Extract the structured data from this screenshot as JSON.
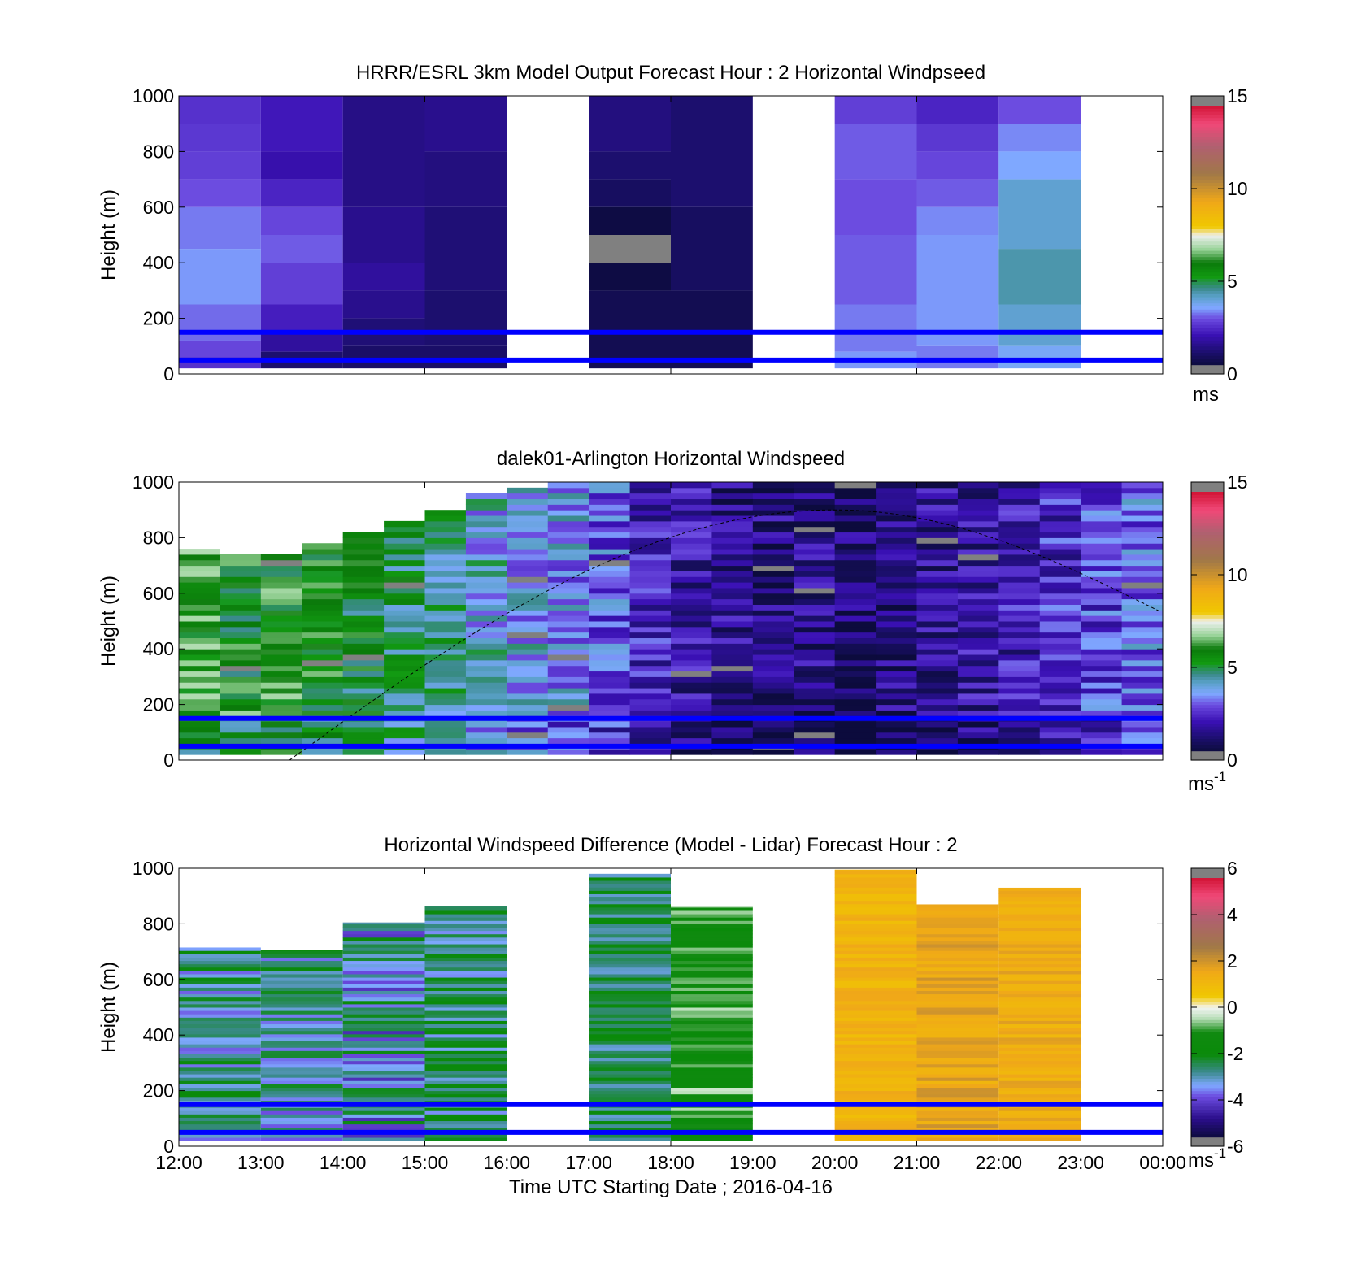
{
  "figure": {
    "xlabel": "Time UTC  Starting Date ; 2016-04-16",
    "x_ticks": [
      "12:00",
      "13:00",
      "14:00",
      "15:00",
      "16:00",
      "17:00",
      "18:00",
      "19:00",
      "20:00",
      "21:00",
      "22:00",
      "23:00",
      "00:00"
    ]
  },
  "chart_data": [
    {
      "type": "heatmap",
      "title": "HRRR/ESRL 3km Model Output   Forecast Hour : 2 Horizontal Windpseed",
      "ylabel": "Height (m)",
      "y_ticks": [
        "0",
        "200",
        "400",
        "600",
        "800",
        "1000"
      ],
      "ylim": [
        0,
        1000
      ],
      "xlim_hours": [
        12,
        24
      ],
      "colorbar": {
        "min": 0,
        "max": 15,
        "ticks": [
          "0",
          "5",
          "10",
          "15"
        ],
        "unit": "ms"
      },
      "reference_lines_m": [
        50,
        150
      ],
      "line_color": "#0000ff",
      "blocks": [
        {
          "start": 12,
          "end": 13,
          "top": 1000,
          "bottom": 20,
          "layers": [
            [
              2.6,
              1000
            ],
            [
              2.7,
              900
            ],
            [
              2.8,
              800
            ],
            [
              3.0,
              700
            ],
            [
              3.3,
              600
            ],
            [
              3.5,
              450
            ],
            [
              3.2,
              250
            ],
            [
              2.9,
              120
            ],
            [
              2.6,
              60
            ]
          ]
        },
        {
          "start": 13,
          "end": 14,
          "top": 1000,
          "bottom": 20,
          "layers": [
            [
              2.2,
              1000
            ],
            [
              2.0,
              800
            ],
            [
              2.4,
              700
            ],
            [
              2.9,
              600
            ],
            [
              3.1,
              500
            ],
            [
              2.8,
              400
            ],
            [
              2.3,
              250
            ],
            [
              1.8,
              150
            ],
            [
              1.2,
              80
            ]
          ]
        },
        {
          "start": 14,
          "end": 15,
          "top": 1000,
          "bottom": 20,
          "layers": [
            [
              1.5,
              1000
            ],
            [
              1.6,
              600
            ],
            [
              1.8,
              400
            ],
            [
              1.6,
              300
            ],
            [
              1.3,
              200
            ],
            [
              1.1,
              100
            ]
          ]
        },
        {
          "start": 15,
          "end": 16,
          "top": 1000,
          "bottom": 20,
          "layers": [
            [
              1.6,
              1000
            ],
            [
              1.4,
              800
            ],
            [
              1.3,
              600
            ],
            [
              1.2,
              300
            ],
            [
              1.1,
              100
            ]
          ]
        },
        {
          "start": 17,
          "end": 18,
          "top": 1000,
          "bottom": 20,
          "layers": [
            [
              1.4,
              1000
            ],
            [
              1.2,
              800
            ],
            [
              1.0,
              700
            ],
            [
              0.6,
              600
            ],
            [
              -1,
              500
            ],
            [
              0.6,
              400
            ],
            [
              0.8,
              300
            ]
          ]
        },
        {
          "start": 18,
          "end": 19,
          "top": 1000,
          "bottom": 20,
          "layers": [
            [
              1.2,
              1000
            ],
            [
              1.0,
              600
            ],
            [
              0.8,
              300
            ]
          ]
        },
        {
          "start": 20,
          "end": 21,
          "top": 1000,
          "bottom": 20,
          "layers": [
            [
              2.8,
              1000
            ],
            [
              3.1,
              900
            ],
            [
              3.0,
              700
            ],
            [
              3.1,
              500
            ],
            [
              3.3,
              250
            ],
            [
              3.5,
              80
            ]
          ]
        },
        {
          "start": 21,
          "end": 22,
          "top": 1000,
          "bottom": 20,
          "layers": [
            [
              2.4,
              1000
            ],
            [
              2.7,
              900
            ],
            [
              2.9,
              800
            ],
            [
              3.1,
              700
            ],
            [
              3.4,
              600
            ],
            [
              3.5,
              500
            ],
            [
              3.3,
              100
            ]
          ]
        },
        {
          "start": 22,
          "end": 23,
          "top": 1000,
          "bottom": 20,
          "layers": [
            [
              3.0,
              1000
            ],
            [
              3.4,
              900
            ],
            [
              3.6,
              800
            ],
            [
              4.1,
              700
            ],
            [
              4.4,
              450
            ],
            [
              4.1,
              250
            ],
            [
              3.7,
              100
            ]
          ]
        }
      ]
    },
    {
      "type": "heatmap",
      "title": "dalek01-Arlington  Horizontal Windspeed",
      "ylabel": "Height (m)",
      "y_ticks": [
        "0",
        "200",
        "400",
        "600",
        "800",
        "1000"
      ],
      "ylim": [
        0,
        1000
      ],
      "xlim_hours": [
        12,
        24
      ],
      "colorbar": {
        "min": 0,
        "max": 15,
        "ticks": [
          "0",
          "5",
          "10",
          "15"
        ],
        "unit": "ms",
        "unit_exp": "-1"
      },
      "reference_lines_m": [
        50,
        150
      ],
      "boundary_layer_curve": {
        "start_hour": 13.35,
        "peak_hour": 20.0,
        "peak_m": 900,
        "end_hour": 24,
        "end_m": 530
      },
      "columns": [
        {
          "start": 12.0,
          "top": 750,
          "mean": 6.0
        },
        {
          "start": 12.5,
          "top": 730,
          "mean": 5.7
        },
        {
          "start": 13.0,
          "top": 740,
          "mean": 5.8
        },
        {
          "start": 13.5,
          "top": 780,
          "mean": 5.5
        },
        {
          "start": 14.0,
          "top": 820,
          "mean": 5.3
        },
        {
          "start": 14.5,
          "top": 860,
          "mean": 5.0
        },
        {
          "start": 15.0,
          "top": 900,
          "mean": 4.6
        },
        {
          "start": 15.5,
          "top": 950,
          "mean": 4.0
        },
        {
          "start": 16.0,
          "top": 980,
          "mean": 3.7
        },
        {
          "start": 16.5,
          "top": 990,
          "mean": 3.6
        },
        {
          "start": 17.0,
          "top": 1000,
          "mean": 3.1
        },
        {
          "start": 17.5,
          "top": 1000,
          "mean": 2.3
        },
        {
          "start": 18.0,
          "top": 1000,
          "mean": 1.9
        },
        {
          "start": 18.5,
          "top": 1000,
          "mean": 1.6
        },
        {
          "start": 19.0,
          "top": 1000,
          "mean": 1.4
        },
        {
          "start": 19.5,
          "top": 1000,
          "mean": 1.5
        },
        {
          "start": 20.0,
          "top": 1000,
          "mean": 1.2
        },
        {
          "start": 20.5,
          "top": 1000,
          "mean": 1.4
        },
        {
          "start": 21.0,
          "top": 1000,
          "mean": 1.6
        },
        {
          "start": 21.5,
          "top": 1000,
          "mean": 1.9
        },
        {
          "start": 22.0,
          "top": 1000,
          "mean": 2.1
        },
        {
          "start": 22.5,
          "top": 1000,
          "mean": 2.4
        },
        {
          "start": 23.0,
          "top": 1000,
          "mean": 2.8
        },
        {
          "start": 23.5,
          "top": 1000,
          "mean": 3.2
        }
      ]
    },
    {
      "type": "heatmap",
      "title": "Horizontal Windspeed Difference (Model - Lidar) Forecast Hour : 2",
      "ylabel": "Height (m)",
      "y_ticks": [
        "0",
        "200",
        "400",
        "600",
        "800",
        "1000"
      ],
      "ylim": [
        0,
        1000
      ],
      "xlim_hours": [
        12,
        24
      ],
      "colorbar": {
        "min": -6,
        "max": 6,
        "ticks": [
          "-6",
          "-4",
          "-2",
          "0",
          "2",
          "4",
          "6"
        ],
        "unit": "ms",
        "unit_exp": "-1"
      },
      "reference_lines_m": [
        50,
        150
      ],
      "blocks": [
        {
          "start": 12,
          "end": 13,
          "top": 715,
          "bottom": 20,
          "mean": -2.8,
          "spread": 1.0
        },
        {
          "start": 13,
          "end": 14,
          "top": 705,
          "bottom": 20,
          "mean": -3.0,
          "spread": 1.0
        },
        {
          "start": 14,
          "end": 15,
          "top": 805,
          "bottom": 20,
          "mean": -3.2,
          "spread": 1.2
        },
        {
          "start": 15,
          "end": 16,
          "top": 865,
          "bottom": 20,
          "mean": -2.6,
          "spread": 0.9
        },
        {
          "start": 17,
          "end": 18,
          "top": 980,
          "bottom": 20,
          "mean": -2.4,
          "spread": 0.8
        },
        {
          "start": 18,
          "end": 19,
          "top": 865,
          "bottom": 20,
          "mean": -1.2,
          "spread": 0.9
        },
        {
          "start": 20,
          "end": 21,
          "top": 995,
          "bottom": 20,
          "mean": 1.2,
          "spread": 0.4
        },
        {
          "start": 21,
          "end": 22,
          "top": 870,
          "bottom": 20,
          "mean": 1.6,
          "spread": 0.5
        },
        {
          "start": 22,
          "end": 23,
          "top": 930,
          "bottom": 20,
          "mean": 1.4,
          "spread": 0.4
        }
      ]
    }
  ]
}
